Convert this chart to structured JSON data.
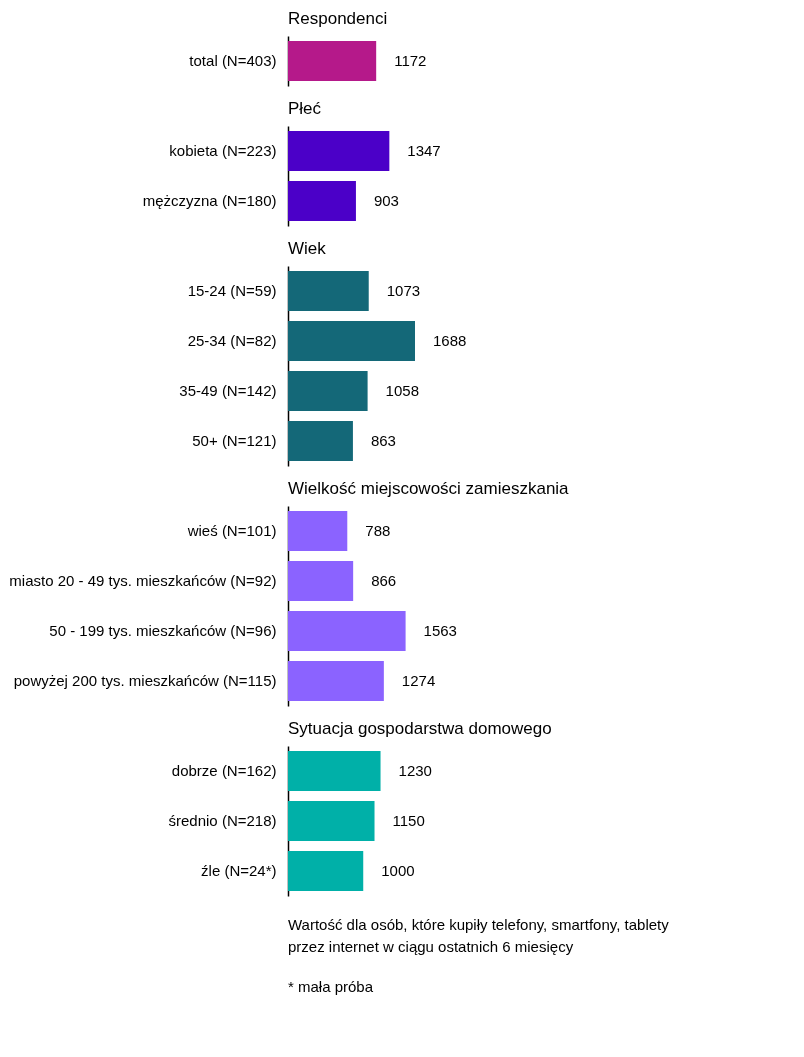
{
  "chart_data": [
    {
      "type": "bar",
      "orientation": "horizontal",
      "title": "Respondenci",
      "categories": [
        "total (N=403)"
      ],
      "values": [
        1172
      ],
      "color": "#b5198a",
      "data_labels": true
    },
    {
      "type": "bar",
      "orientation": "horizontal",
      "title": "Płeć",
      "categories": [
        "kobieta (N=223)",
        "mężczyzna (N=180)"
      ],
      "values": [
        1347,
        903
      ],
      "color": "#4b00c8",
      "data_labels": true
    },
    {
      "type": "bar",
      "orientation": "horizontal",
      "title": "Wiek",
      "categories": [
        "15-24 (N=59)",
        "25-34 (N=82)",
        "35-49 (N=142)",
        "50+ (N=121)"
      ],
      "values": [
        1073,
        1688,
        1058,
        863
      ],
      "color": "#146878",
      "data_labels": true
    },
    {
      "type": "bar",
      "orientation": "horizontal",
      "title": "Wielkość miejscowości zamieszkania",
      "categories": [
        "wieś (N=101)",
        "miasto 20 - 49 tys. mieszkańców (N=92)",
        "50 - 199 tys. mieszkańców (N=96)",
        "powyżej 200 tys. mieszkańców (N=115)"
      ],
      "values": [
        788,
        866,
        1563,
        1274
      ],
      "color": "#8b63ff",
      "data_labels": true
    },
    {
      "type": "bar",
      "orientation": "horizontal",
      "title": "Sytuacja gospodarstwa domowego",
      "categories": [
        "dobrze (N=162)",
        "średnio (N=218)",
        "źle (N=24*)"
      ],
      "values": [
        1230,
        1150,
        1000
      ],
      "color": "#00b0a8",
      "data_labels": true,
      "annotations": [
        "Wartość dla osób, które kupiły telefony, smartfony, tablety\nprzez internet w ciągu ostatnich 6 miesięcy",
        "* mała próba"
      ]
    }
  ]
}
